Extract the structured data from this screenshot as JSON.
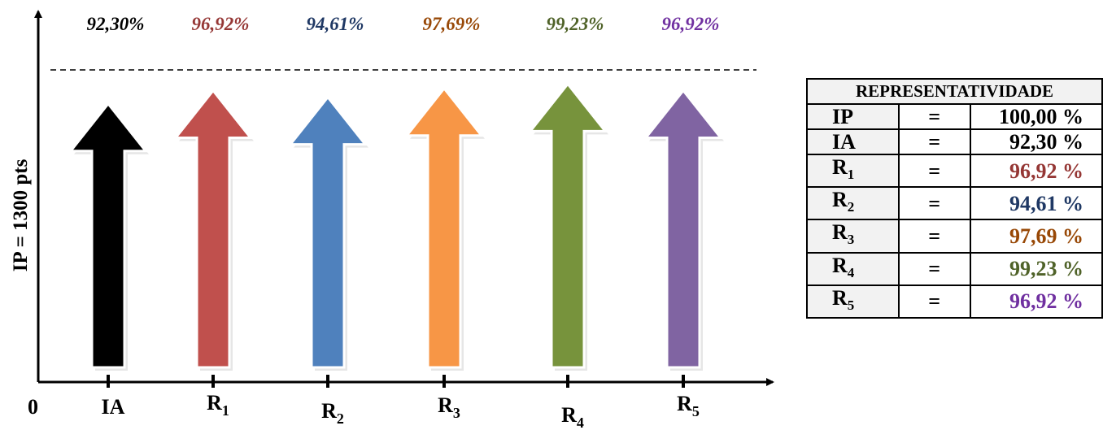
{
  "chart_data": {
    "type": "bar",
    "ylabel": "IP = 1300 pts",
    "origin_label": "0",
    "reference": 100.0,
    "categories": [
      {
        "base": "IA",
        "sub": ""
      },
      {
        "base": "R",
        "sub": "1"
      },
      {
        "base": "R",
        "sub": "2"
      },
      {
        "base": "R",
        "sub": "3"
      },
      {
        "base": "R",
        "sub": "4"
      },
      {
        "base": "R",
        "sub": "5"
      }
    ],
    "values": [
      92.3,
      96.92,
      94.61,
      97.69,
      99.23,
      96.92
    ],
    "value_labels": [
      "92,30%",
      "96,92%",
      "94,61%",
      "97,69%",
      "99,23%",
      "96,92%"
    ],
    "colors": [
      "#000000",
      "#c0504d",
      "#4f81bd",
      "#f79646",
      "#77933c",
      "#8064a2"
    ],
    "label_colors": [
      "#000000",
      "#953735",
      "#1f3864",
      "#984806",
      "#4f6228",
      "#7030a0"
    ]
  },
  "table": {
    "title": "REPRESENTATIVIDADE",
    "rows": [
      {
        "base": "IP",
        "sub": "",
        "eq": "=",
        "value": "100,00 %",
        "color": "#000000"
      },
      {
        "base": "IA",
        "sub": "",
        "eq": "=",
        "value": "92,30 %",
        "color": "#000000"
      },
      {
        "base": "R",
        "sub": "1",
        "eq": "=",
        "value": "96,92 %",
        "color": "#953735"
      },
      {
        "base": "R",
        "sub": "2",
        "eq": "=",
        "value": "94,61 %",
        "color": "#1f3864"
      },
      {
        "base": "R",
        "sub": "3",
        "eq": "=",
        "value": "97,69 %",
        "color": "#984806"
      },
      {
        "base": "R",
        "sub": "4",
        "eq": "=",
        "value": "99,23 %",
        "color": "#4f6228"
      },
      {
        "base": "R",
        "sub": "5",
        "eq": "=",
        "value": "96,92 %",
        "color": "#7030a0"
      }
    ]
  }
}
